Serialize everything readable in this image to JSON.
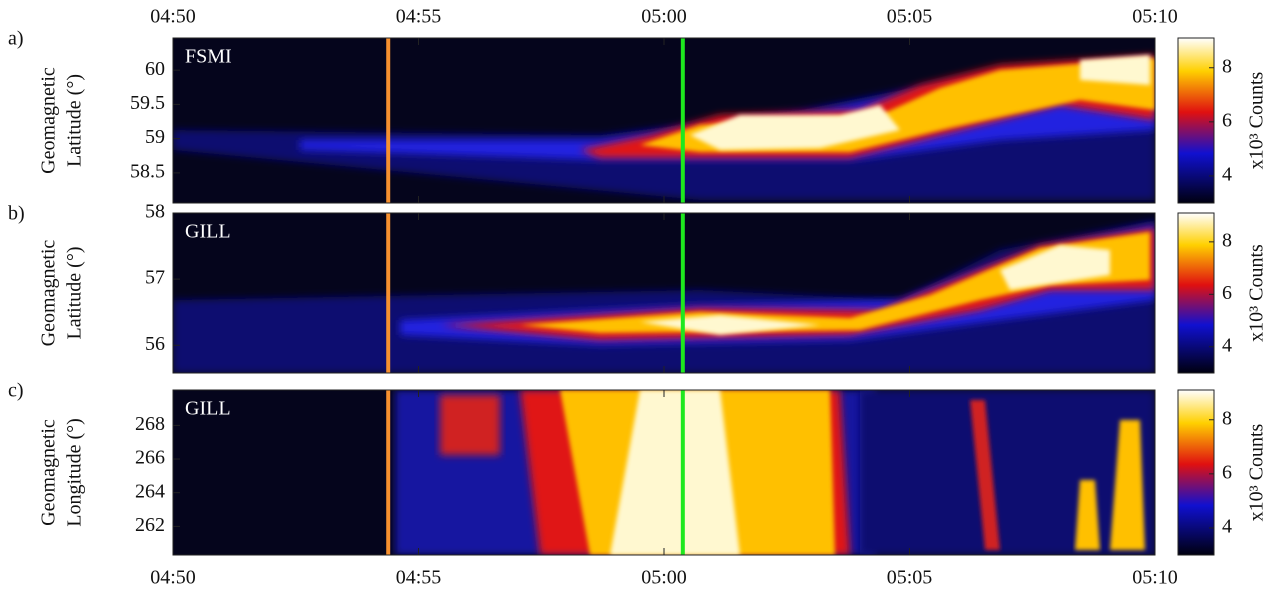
{
  "chart_data": [
    {
      "type": "heatmap",
      "panel_label": "a)",
      "annotation": "FSMI",
      "ylabel": [
        "Geomagnetic",
        "Latitude (°)"
      ],
      "xlim": [
        "04:50",
        "05:10"
      ],
      "xticks": [
        "04:50",
        "04:55",
        "05:00",
        "05:05",
        "05:10"
      ],
      "ylim": [
        58.06,
        60.47
      ],
      "yticks": [
        58.5,
        59,
        59.5,
        60
      ],
      "markers": [
        {
          "x": "04:54:23",
          "color": "#f7902f"
        },
        {
          "x": "05:00:23",
          "color": "#1ee81e"
        }
      ],
      "colorbar": {
        "label": "x10³ Counts",
        "lim": [
          3,
          9.1
        ],
        "ticks": [
          4,
          6,
          8
        ]
      }
    },
    {
      "type": "heatmap",
      "panel_label": "b)",
      "annotation": "GILL",
      "ylabel": [
        "Geomagnetic",
        "Latitude (°)"
      ],
      "xlim": [
        "04:50",
        "05:10"
      ],
      "xticks": [
        "04:50",
        "04:55",
        "05:00",
        "05:05",
        "05:10"
      ],
      "ylim": [
        55.58,
        58
      ],
      "yticks": [
        56,
        57,
        58
      ],
      "markers": [
        {
          "x": "04:54:23",
          "color": "#f7902f"
        },
        {
          "x": "05:00:23",
          "color": "#1ee81e"
        }
      ],
      "colorbar": {
        "label": "x10³ Counts",
        "lim": [
          3,
          9.1
        ],
        "ticks": [
          4,
          6,
          8
        ]
      }
    },
    {
      "type": "heatmap",
      "panel_label": "c)",
      "annotation": "GILL",
      "ylabel": [
        "Geomagnetic",
        "Longitude (°)"
      ],
      "xlim": [
        "04:50",
        "05:10"
      ],
      "xticks": [
        "04:50",
        "04:55",
        "05:00",
        "05:05",
        "05:10"
      ],
      "ylim": [
        260.3,
        270.1
      ],
      "yticks": [
        262,
        264,
        266,
        268
      ],
      "markers": [
        {
          "x": "04:54:23",
          "color": "#f7902f"
        },
        {
          "x": "05:00:23",
          "color": "#1ee81e"
        }
      ],
      "colorbar": {
        "label": "x10³ Counts",
        "lim": [
          3,
          9.1
        ],
        "ticks": [
          4,
          6,
          8
        ]
      }
    }
  ]
}
